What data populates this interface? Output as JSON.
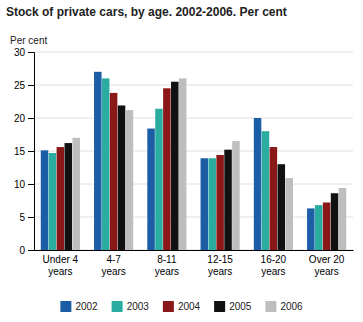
{
  "chart_data": {
    "type": "bar",
    "title": "Stock of private cars, by age. 2002-2006. Per cent",
    "ylabel": "Per cent",
    "categories": [
      "Under 4\nyears",
      "4-7\nyears",
      "8-11\nyears",
      "12-15\nyears",
      "16-20\nyears",
      "Over 20\nyears"
    ],
    "series": [
      {
        "name": "2002",
        "color": "#1B5EA6",
        "values": [
          15.1,
          27.0,
          18.4,
          13.9,
          20.0,
          6.3
        ]
      },
      {
        "name": "2003",
        "color": "#2AADA0",
        "values": [
          14.7,
          26.0,
          21.4,
          13.9,
          18.0,
          6.8
        ]
      },
      {
        "name": "2004",
        "color": "#8B1818",
        "values": [
          15.6,
          23.8,
          24.5,
          14.4,
          15.6,
          7.2
        ]
      },
      {
        "name": "2005",
        "color": "#111111",
        "values": [
          16.2,
          21.9,
          25.5,
          15.2,
          13.0,
          8.6
        ]
      },
      {
        "name": "2006",
        "color": "#BEBEBE",
        "values": [
          17.0,
          21.2,
          26.0,
          16.5,
          10.9,
          9.4
        ]
      }
    ],
    "ylim": [
      0,
      30
    ],
    "yticks": [
      0,
      5,
      10,
      15,
      20,
      25,
      30
    ],
    "grid": true,
    "legend": "bottom"
  }
}
